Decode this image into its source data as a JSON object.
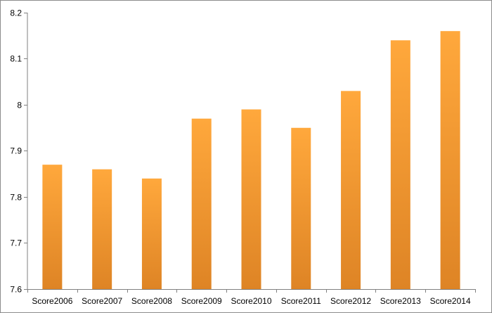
{
  "chart_data": {
    "type": "bar",
    "title": "",
    "xlabel": "",
    "ylabel": "",
    "categories": [
      "Score2006",
      "Score2007",
      "Score2008",
      "Score2009",
      "Score2010",
      "Score2011",
      "Score2012",
      "Score2013",
      "Score2014"
    ],
    "values": [
      7.87,
      7.86,
      7.84,
      7.97,
      7.99,
      7.95,
      8.03,
      8.14,
      8.16
    ],
    "ylim": [
      7.6,
      8.2
    ],
    "yticks": [
      "7.6",
      "7.7",
      "7.8",
      "7.9",
      "8",
      "8.1",
      "8.2"
    ],
    "grid": false,
    "legend": "none",
    "colors": {
      "bar_top": "#ffa83c",
      "bar_bottom": "#de8425",
      "axis": "#808080"
    }
  }
}
